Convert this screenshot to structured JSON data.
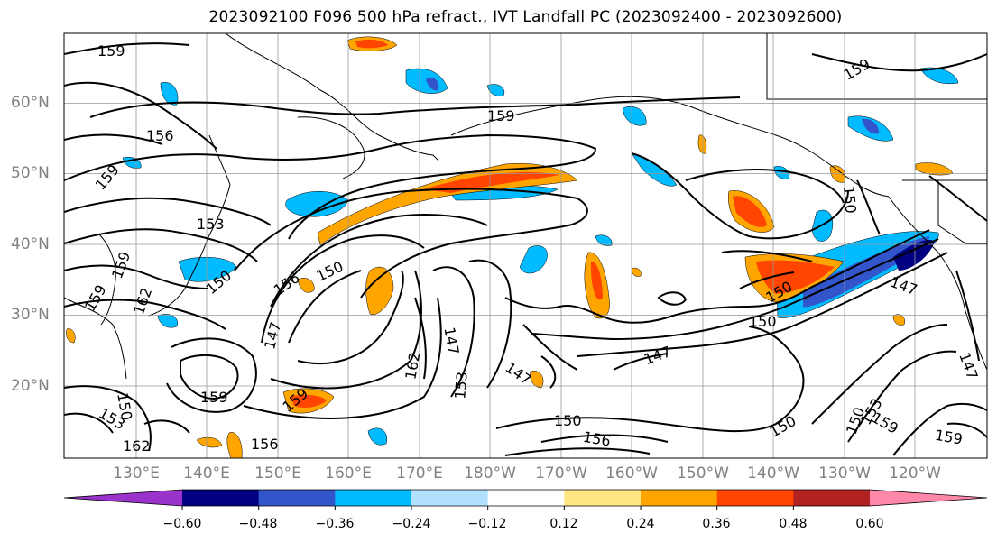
{
  "title": "2023092100 F096 500 hPa refract., IVT Landfall PC (2023092400 - 2023092600)",
  "lat_labels": [
    "60°N",
    "50°N",
    "40°N",
    "30°N",
    "20°N"
  ],
  "lon_labels": [
    "130°E",
    "140°E",
    "150°E",
    "160°E",
    "170°E",
    "180°W",
    "170°W",
    "160°W",
    "150°W",
    "140°W",
    "130°W",
    "120°W"
  ],
  "colorbar": {
    "ticks": [
      "−0.60",
      "−0.48",
      "−0.36",
      "−0.24",
      "−0.12",
      "0.12",
      "0.24",
      "0.36",
      "0.48",
      "0.60"
    ],
    "colors": [
      "#9933cc",
      "#000080",
      "#3355cc",
      "#00bbff",
      "#b3e0ff",
      "#ffffff",
      "#ffe680",
      "#ffa500",
      "#ff4500",
      "#b22222",
      "#ff88aa"
    ]
  },
  "contour_labels": [
    "159",
    "156",
    "159",
    "153",
    "150",
    "147",
    "150",
    "147",
    "162",
    "159",
    "153",
    "147",
    "156",
    "150",
    "159",
    "153",
    "150",
    "162",
    "150",
    "159",
    "147",
    "150",
    "156",
    "150",
    "159",
    "159",
    "150",
    "153",
    "147",
    "150",
    "159",
    "147",
    "156",
    "159",
    "159",
    "162"
  ]
}
